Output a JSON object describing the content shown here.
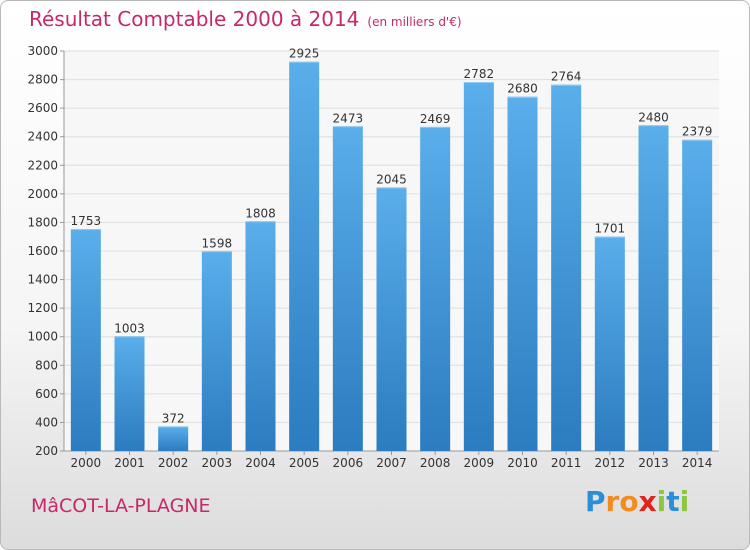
{
  "title": "Résultat Comptable 2000 à 2014",
  "unit": "(en milliers d'€)",
  "place": "MâCOT-LA-PLAGNE",
  "logo": {
    "letters": [
      "P",
      "r",
      "o",
      "x",
      "i",
      "t",
      "i"
    ],
    "colors": [
      "#2a8fd6",
      "#f28c1e",
      "#f28c1e",
      "#e2231a",
      "#8dc63f",
      "#2a8fd6",
      "#8dc63f"
    ]
  },
  "colors": {
    "bar_light": "#5aaeea",
    "bar_dark": "#2b7cc0",
    "accent": "#c8286a"
  },
  "chart_data": {
    "type": "bar",
    "title": "Résultat Comptable 2000 à 2014",
    "categories": [
      "2000",
      "2001",
      "2002",
      "2003",
      "2004",
      "2005",
      "2006",
      "2007",
      "2008",
      "2009",
      "2010",
      "2011",
      "2012",
      "2013",
      "2014"
    ],
    "values": [
      1753,
      1003,
      372,
      1598,
      1808,
      2925,
      2473,
      2045,
      2469,
      2782,
      2680,
      2764,
      1701,
      2480,
      2379
    ],
    "yticks": [
      200,
      400,
      600,
      800,
      1000,
      1200,
      1400,
      1600,
      1800,
      2000,
      2200,
      2400,
      2600,
      2800,
      3000
    ],
    "ylim": [
      200,
      3000
    ],
    "grid": true,
    "xlabel": "",
    "ylabel": ""
  }
}
